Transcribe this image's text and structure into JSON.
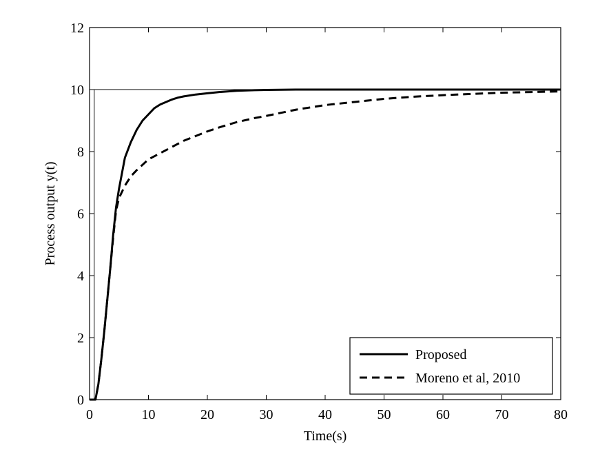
{
  "chart_data": {
    "type": "line",
    "title": "",
    "xlabel": "Time(s)",
    "ylabel": "Process output y(t)",
    "xlim": [
      0,
      80
    ],
    "ylim": [
      0,
      12
    ],
    "xticks": [
      0,
      10,
      20,
      30,
      40,
      50,
      60,
      70,
      80
    ],
    "yticks": [
      0,
      2,
      4,
      6,
      8,
      10,
      12
    ],
    "grid": false,
    "legend_position": "bottom-right",
    "reference": {
      "x": [
        0,
        0.8,
        0.8,
        80
      ],
      "y": [
        0,
        0,
        10,
        10
      ]
    },
    "series": [
      {
        "name": "Proposed",
        "style": "solid",
        "x": [
          0,
          1,
          1.5,
          2,
          2.5,
          3,
          3.5,
          4,
          4.5,
          5,
          5.5,
          6,
          7,
          8,
          9,
          10,
          11,
          12,
          13,
          14,
          15,
          16,
          18,
          20,
          22,
          25,
          28,
          30,
          35,
          40,
          50,
          60,
          70,
          80
        ],
        "y": [
          0,
          0,
          0.5,
          1.3,
          2.2,
          3.2,
          4.2,
          5.3,
          6.2,
          6.8,
          7.3,
          7.8,
          8.3,
          8.7,
          9.0,
          9.2,
          9.4,
          9.52,
          9.6,
          9.68,
          9.74,
          9.78,
          9.84,
          9.88,
          9.92,
          9.96,
          9.98,
          9.99,
          10.0,
          10.0,
          10.0,
          10.0,
          10.0,
          10.0
        ]
      },
      {
        "name": "Moreno et al, 2010",
        "style": "dashed",
        "x": [
          0,
          1,
          1.5,
          2,
          2.5,
          3,
          3.5,
          4,
          4.5,
          5,
          6,
          7,
          8,
          10,
          12,
          14,
          16,
          18,
          20,
          22,
          25,
          28,
          30,
          35,
          40,
          45,
          50,
          55,
          60,
          65,
          70,
          75,
          80
        ],
        "y": [
          0,
          0,
          0.5,
          1.3,
          2.2,
          3.2,
          4.2,
          5.2,
          6.1,
          6.5,
          6.9,
          7.2,
          7.4,
          7.75,
          7.95,
          8.15,
          8.35,
          8.5,
          8.65,
          8.78,
          8.95,
          9.08,
          9.15,
          9.35,
          9.5,
          9.6,
          9.7,
          9.77,
          9.82,
          9.86,
          9.9,
          9.92,
          9.94
        ]
      }
    ]
  }
}
